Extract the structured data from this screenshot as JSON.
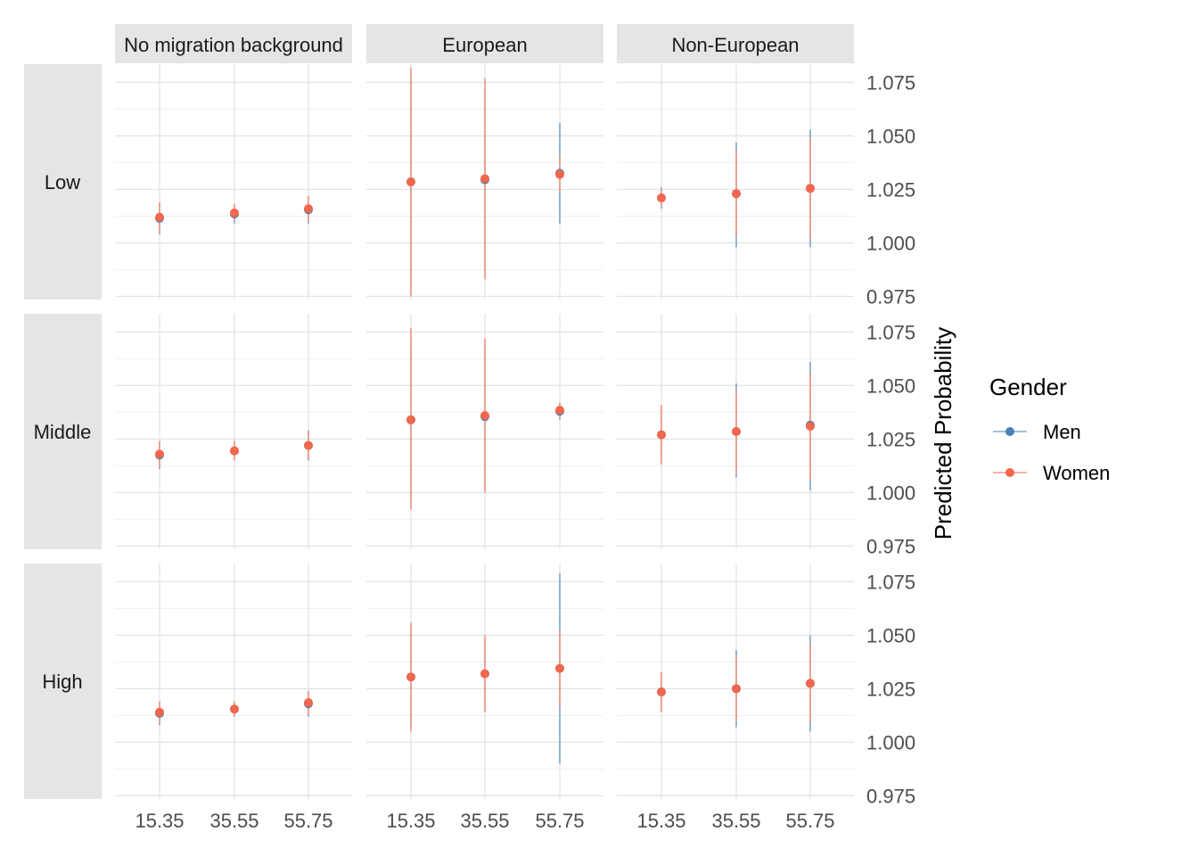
{
  "chart_data": {
    "type": "scatter",
    "title": "",
    "xlabel": "",
    "ylabel": "Predicted Probability",
    "facet_columns": [
      "No migration background",
      "European",
      "Non-European"
    ],
    "facet_rows": [
      "Low",
      "Middle",
      "High"
    ],
    "x_ticks": [
      "15.35",
      "35.55",
      "55.75"
    ],
    "y_ticks": [
      "0.975",
      "1.000",
      "1.025",
      "1.050",
      "1.075"
    ],
    "ylim": [
      0.9735,
      1.0835
    ],
    "grid": true,
    "legend": {
      "title": "Gender",
      "placement": "right",
      "entries": [
        {
          "label": "Men",
          "color": "#4682B4"
        },
        {
          "label": "Women",
          "color": "#F0674E"
        }
      ]
    },
    "panels": [
      {
        "row": "Low",
        "column": "No migration background",
        "series": [
          {
            "name": "Men",
            "points": [
              {
                "x": 15.35,
                "y": 1.0115,
                "lo": 1.004,
                "hi": 1.019
              },
              {
                "x": 35.55,
                "y": 1.0135,
                "lo": 1.009,
                "hi": 1.018
              },
              {
                "x": 55.75,
                "y": 1.0155,
                "lo": 1.009,
                "hi": 1.022
              }
            ]
          },
          {
            "name": "Women",
            "points": [
              {
                "x": 15.35,
                "y": 1.012,
                "lo": 1.005,
                "hi": 1.019
              },
              {
                "x": 35.55,
                "y": 1.014,
                "lo": 1.01,
                "hi": 1.018
              },
              {
                "x": 55.75,
                "y": 1.016,
                "lo": 1.01,
                "hi": 1.022
              }
            ]
          }
        ]
      },
      {
        "row": "Low",
        "column": "European",
        "series": [
          {
            "name": "Men",
            "points": [
              {
                "x": 15.35,
                "y": 1.0285,
                "lo": 0.979,
                "hi": 1.078
              },
              {
                "x": 35.55,
                "y": 1.0295,
                "lo": 0.987,
                "hi": 1.072
              },
              {
                "x": 55.75,
                "y": 1.0325,
                "lo": 1.009,
                "hi": 1.056
              }
            ]
          },
          {
            "name": "Women",
            "points": [
              {
                "x": 15.35,
                "y": 1.0285,
                "lo": 0.975,
                "hi": 1.082
              },
              {
                "x": 35.55,
                "y": 1.03,
                "lo": 0.983,
                "hi": 1.077
              },
              {
                "x": 55.75,
                "y": 1.032,
                "lo": 1.024,
                "hi": 1.04
              }
            ]
          }
        ]
      },
      {
        "row": "Low",
        "column": "Non-European",
        "series": [
          {
            "name": "Men",
            "points": [
              {
                "x": 15.35,
                "y": 1.021,
                "lo": 1.016,
                "hi": 1.026
              },
              {
                "x": 35.55,
                "y": 1.023,
                "lo": 0.998,
                "hi": 1.047
              },
              {
                "x": 55.75,
                "y": 1.0255,
                "lo": 0.998,
                "hi": 1.053
              }
            ]
          },
          {
            "name": "Women",
            "points": [
              {
                "x": 15.35,
                "y": 1.021,
                "lo": 1.017,
                "hi": 1.025
              },
              {
                "x": 35.55,
                "y": 1.023,
                "lo": 1.003,
                "hi": 1.043
              },
              {
                "x": 55.75,
                "y": 1.0255,
                "lo": 1.002,
                "hi": 1.049
              }
            ]
          }
        ]
      },
      {
        "row": "Middle",
        "column": "No migration background",
        "series": [
          {
            "name": "Men",
            "points": [
              {
                "x": 15.35,
                "y": 1.0175,
                "lo": 1.011,
                "hi": 1.024
              },
              {
                "x": 35.55,
                "y": 1.0195,
                "lo": 1.015,
                "hi": 1.024
              },
              {
                "x": 55.75,
                "y": 1.022,
                "lo": 1.015,
                "hi": 1.029
              }
            ]
          },
          {
            "name": "Women",
            "points": [
              {
                "x": 15.35,
                "y": 1.018,
                "lo": 1.012,
                "hi": 1.024
              },
              {
                "x": 35.55,
                "y": 1.0195,
                "lo": 1.015,
                "hi": 1.024
              },
              {
                "x": 55.75,
                "y": 1.022,
                "lo": 1.016,
                "hi": 1.028
              }
            ]
          }
        ]
      },
      {
        "row": "Middle",
        "column": "European",
        "series": [
          {
            "name": "Men",
            "points": [
              {
                "x": 15.35,
                "y": 1.034,
                "lo": 0.996,
                "hi": 1.072
              },
              {
                "x": 35.55,
                "y": 1.0355,
                "lo": 1.001,
                "hi": 1.069
              },
              {
                "x": 55.75,
                "y": 1.038,
                "lo": 1.034,
                "hi": 1.042
              }
            ]
          },
          {
            "name": "Women",
            "points": [
              {
                "x": 15.35,
                "y": 1.034,
                "lo": 0.992,
                "hi": 1.077
              },
              {
                "x": 35.55,
                "y": 1.036,
                "lo": 1.0,
                "hi": 1.072
              },
              {
                "x": 55.75,
                "y": 1.0385,
                "lo": 1.035,
                "hi": 1.042
              }
            ]
          }
        ]
      },
      {
        "row": "Middle",
        "column": "Non-European",
        "series": [
          {
            "name": "Men",
            "points": [
              {
                "x": 15.35,
                "y": 1.027,
                "lo": 1.015,
                "hi": 1.039
              },
              {
                "x": 35.55,
                "y": 1.0285,
                "lo": 1.007,
                "hi": 1.051
              },
              {
                "x": 55.75,
                "y": 1.0315,
                "lo": 1.001,
                "hi": 1.061
              }
            ]
          },
          {
            "name": "Women",
            "points": [
              {
                "x": 15.35,
                "y": 1.027,
                "lo": 1.013,
                "hi": 1.041
              },
              {
                "x": 35.55,
                "y": 1.0285,
                "lo": 1.009,
                "hi": 1.048
              },
              {
                "x": 55.75,
                "y": 1.031,
                "lo": 1.006,
                "hi": 1.056
              }
            ]
          }
        ]
      },
      {
        "row": "High",
        "column": "No migration background",
        "series": [
          {
            "name": "Men",
            "points": [
              {
                "x": 15.35,
                "y": 1.0135,
                "lo": 1.008,
                "hi": 1.019
              },
              {
                "x": 35.55,
                "y": 1.0155,
                "lo": 1.012,
                "hi": 1.019
              },
              {
                "x": 55.75,
                "y": 1.018,
                "lo": 1.012,
                "hi": 1.024
              }
            ]
          },
          {
            "name": "Women",
            "points": [
              {
                "x": 15.35,
                "y": 1.014,
                "lo": 1.009,
                "hi": 1.019
              },
              {
                "x": 35.55,
                "y": 1.0155,
                "lo": 1.012,
                "hi": 1.019
              },
              {
                "x": 55.75,
                "y": 1.0185,
                "lo": 1.013,
                "hi": 1.024
              }
            ]
          }
        ]
      },
      {
        "row": "High",
        "column": "European",
        "series": [
          {
            "name": "Men",
            "points": [
              {
                "x": 15.35,
                "y": 1.0305,
                "lo": 1.007,
                "hi": 1.054
              },
              {
                "x": 35.55,
                "y": 1.032,
                "lo": 1.016,
                "hi": 1.048
              },
              {
                "x": 55.75,
                "y": 1.0345,
                "lo": 0.99,
                "hi": 1.079
              }
            ]
          },
          {
            "name": "Women",
            "points": [
              {
                "x": 15.35,
                "y": 1.0305,
                "lo": 1.005,
                "hi": 1.056
              },
              {
                "x": 35.55,
                "y": 1.032,
                "lo": 1.014,
                "hi": 1.05
              },
              {
                "x": 55.75,
                "y": 1.0345,
                "lo": 1.017,
                "hi": 1.052
              }
            ]
          }
        ]
      },
      {
        "row": "High",
        "column": "Non-European",
        "series": [
          {
            "name": "Men",
            "points": [
              {
                "x": 15.35,
                "y": 1.0235,
                "lo": 1.015,
                "hi": 1.032
              },
              {
                "x": 35.55,
                "y": 1.025,
                "lo": 1.007,
                "hi": 1.043
              },
              {
                "x": 55.75,
                "y": 1.0275,
                "lo": 1.005,
                "hi": 1.05
              }
            ]
          },
          {
            "name": "Women",
            "points": [
              {
                "x": 15.35,
                "y": 1.0235,
                "lo": 1.014,
                "hi": 1.033
              },
              {
                "x": 35.55,
                "y": 1.025,
                "lo": 1.01,
                "hi": 1.04
              },
              {
                "x": 55.75,
                "y": 1.0275,
                "lo": 1.009,
                "hi": 1.046
              }
            ]
          }
        ]
      }
    ]
  }
}
